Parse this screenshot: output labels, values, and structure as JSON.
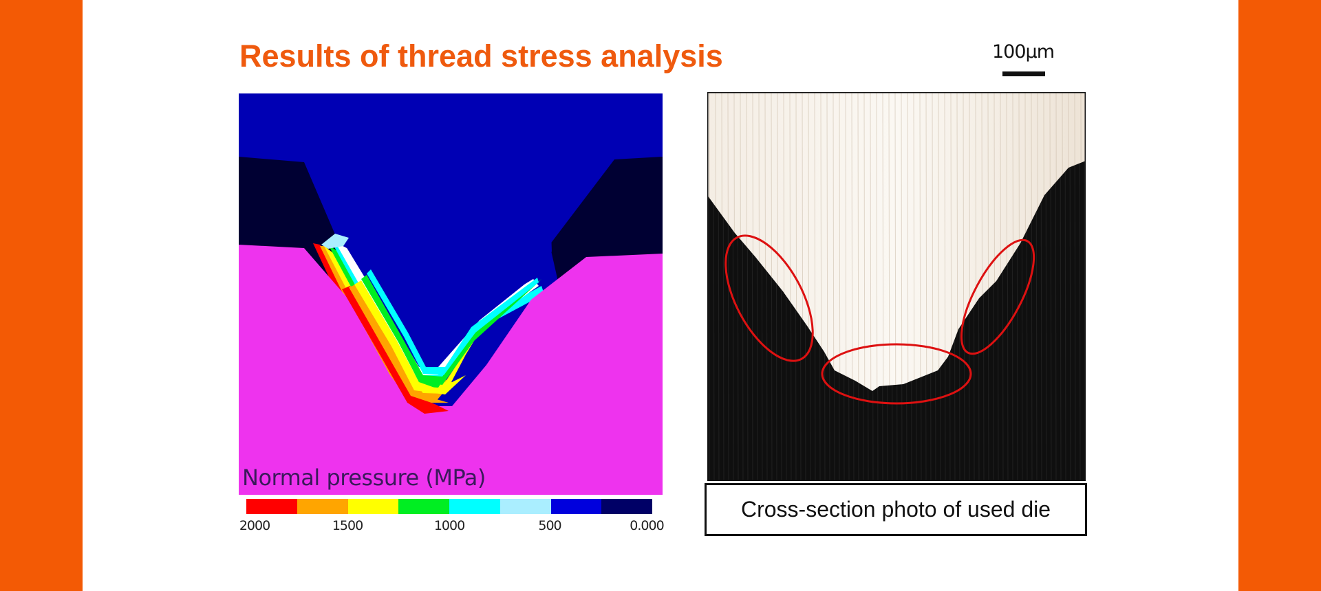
{
  "title": "Results of thread stress analysis",
  "scale_bar": {
    "label": "100μm"
  },
  "simulation": {
    "caption": "Normal pressure (MPa)",
    "legend_colors": [
      "#ff0000",
      "#ffa500",
      "#ffff00",
      "#00ee22",
      "#00ffff",
      "#aaeeff",
      "#0000dd",
      "#000066"
    ],
    "tick_labels": [
      "2000",
      "1500",
      "1000",
      "500",
      "0.000"
    ]
  },
  "photo": {
    "caption": "Cross-section photo of used die"
  },
  "colors": {
    "accent": "#f35a05",
    "title": "#ef5a0e",
    "sim_background": "#0000b4",
    "sim_material": "#ee33ee",
    "ellipse": "#dd1111"
  }
}
